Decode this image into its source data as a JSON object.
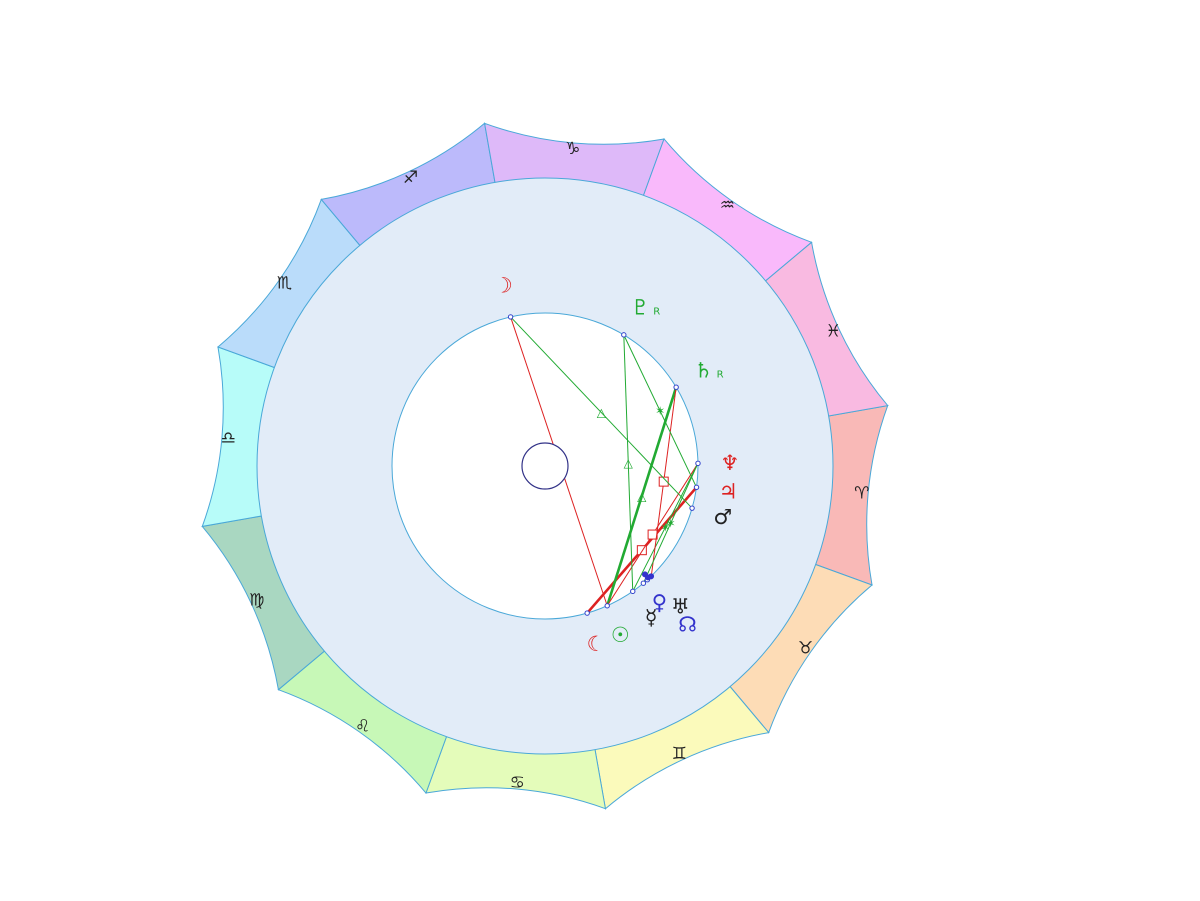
{
  "chart_data": {
    "type": "astrological-wheel",
    "signs": [
      {
        "name": "aries",
        "glyph": "♈",
        "color": "#f9b9b7",
        "start": 0
      },
      {
        "name": "taurus",
        "glyph": "♉",
        "color": "#fddcb6",
        "start": 30
      },
      {
        "name": "gemini",
        "glyph": "♊",
        "color": "#fbfabb",
        "start": 60
      },
      {
        "name": "cancer",
        "glyph": "♋",
        "color": "#e4fcba",
        "start": 90
      },
      {
        "name": "leo",
        "glyph": "♌",
        "color": "#c7f8b7",
        "start": 120
      },
      {
        "name": "virgo",
        "glyph": "♍",
        "color": "#a9d7c1",
        "start": 150
      },
      {
        "name": "libra",
        "glyph": "♎",
        "color": "#b7fcf9",
        "start": 180
      },
      {
        "name": "scorpio",
        "glyph": "♏",
        "color": "#badcfa",
        "start": 210
      },
      {
        "name": "sagittarius",
        "glyph": "♐",
        "color": "#bcbafb",
        "start": 240
      },
      {
        "name": "capricorn",
        "glyph": "♑",
        "color": "#deb9f9",
        "start": 270
      },
      {
        "name": "aquarius",
        "glyph": "♒",
        "color": "#f9b9fb",
        "start": 300
      },
      {
        "name": "pisces",
        "glyph": "♓",
        "color": "#f9bae1",
        "start": 330
      }
    ],
    "planets": [
      {
        "name": "lilith",
        "glyph": "☾",
        "color": "#dd2222",
        "longitude": 84,
        "retrograde": false
      },
      {
        "name": "sun",
        "glyph": "☉",
        "color": "#22aa33",
        "longitude": 76,
        "retrograde": false
      },
      {
        "name": "mercury",
        "glyph": "☿",
        "color": "#222222",
        "longitude": 65,
        "retrograde": false
      },
      {
        "name": "north-node",
        "glyph": "☊",
        "color": "#3333cc",
        "longitude": 58,
        "retrograde": false
      },
      {
        "name": "venus",
        "glyph": "♀",
        "color": "#3333cc",
        "longitude": 60,
        "retrograde": false
      },
      {
        "name": "uranus",
        "glyph": "♅",
        "color": "#222222",
        "longitude": 56,
        "retrograde": false
      },
      {
        "name": "mars",
        "glyph": "♂",
        "color": "#222222",
        "longitude": 26,
        "retrograde": false
      },
      {
        "name": "jupiter",
        "glyph": "♃",
        "color": "#dd2222",
        "longitude": 18,
        "retrograde": false
      },
      {
        "name": "neptune",
        "glyph": "♆",
        "color": "#dd2222",
        "longitude": 9,
        "retrograde": false
      },
      {
        "name": "saturn",
        "glyph": "♄",
        "color": "#22aa33",
        "longitude": 339,
        "retrograde": true,
        "retro_label": "R"
      },
      {
        "name": "pluto",
        "glyph": "♇",
        "color": "#22aa33",
        "longitude": 311,
        "retrograde": true,
        "retro_label": "R"
      },
      {
        "name": "moon",
        "glyph": "☽",
        "color": "#dd2222",
        "longitude": 267,
        "retrograde": false
      }
    ],
    "aspects": [
      {
        "from": "lilith",
        "to": "jupiter",
        "type": "square",
        "color": "#dd2222",
        "strong": true
      },
      {
        "from": "sun",
        "to": "saturn",
        "type": "trine",
        "color": "#22aa33",
        "strong": true
      },
      {
        "from": "sun",
        "to": "moon",
        "type": "opposition",
        "color": "#dd2222",
        "strong": false
      },
      {
        "from": "sun",
        "to": "neptune",
        "type": "square",
        "color": "#dd2222",
        "strong": false
      },
      {
        "from": "mercury",
        "to": "pluto",
        "type": "trine",
        "color": "#22aa33",
        "strong": false
      },
      {
        "from": "mercury",
        "to": "neptune",
        "type": "sextile",
        "color": "#22aa33",
        "strong": false
      },
      {
        "from": "uranus",
        "to": "saturn",
        "type": "square",
        "color": "#dd2222",
        "strong": false
      },
      {
        "from": "venus",
        "to": "neptune",
        "type": "sextile",
        "color": "#22aa33",
        "strong": false
      },
      {
        "from": "moon",
        "to": "mars",
        "type": "trine",
        "color": "#22aa33",
        "strong": false
      },
      {
        "from": "pluto",
        "to": "jupiter",
        "type": "sextile",
        "color": "#22aa33",
        "strong": false
      }
    ],
    "colors": {
      "ring_stroke": "#4aa8d8",
      "middle_fill": "#e2ecf8",
      "center_fill": "#ffffff",
      "hub_stroke": "#333388"
    }
  }
}
